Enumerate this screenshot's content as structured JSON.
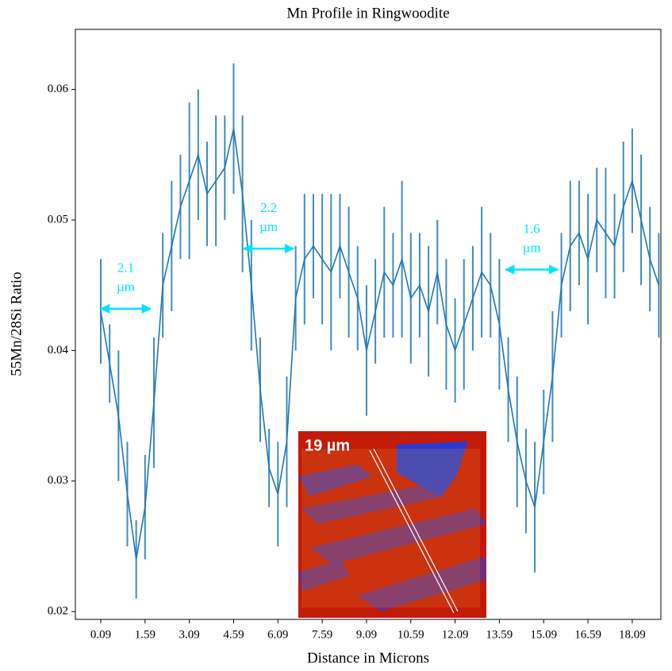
{
  "chart_data": {
    "type": "line",
    "title": "Mn Profile in Ringwoodite",
    "x_label": "Distance in Microns",
    "y_label": "55Mn/28Si Ratio",
    "color": "#1f77b4",
    "x": [
      0.09,
      0.39,
      0.69,
      0.99,
      1.29,
      1.59,
      1.89,
      2.19,
      2.49,
      2.79,
      3.09,
      3.39,
      3.69,
      3.99,
      4.29,
      4.59,
      4.89,
      5.19,
      5.49,
      5.79,
      6.09,
      6.39,
      6.69,
      6.99,
      7.29,
      7.59,
      7.89,
      8.19,
      8.49,
      8.79,
      9.09,
      9.39,
      9.69,
      9.99,
      10.29,
      10.59,
      10.89,
      11.19,
      11.49,
      11.79,
      12.09,
      12.39,
      12.69,
      12.99,
      13.29,
      13.59,
      13.89,
      14.19,
      14.49,
      14.79,
      15.09,
      15.39,
      15.69,
      15.99,
      16.29,
      16.59,
      16.89,
      17.19,
      17.49,
      17.79,
      18.09,
      18.39,
      18.69,
      18.99
    ],
    "values": [
      0.043,
      0.039,
      0.035,
      0.029,
      0.024,
      0.028,
      0.036,
      0.045,
      0.048,
      0.051,
      0.053,
      0.055,
      0.052,
      0.053,
      0.054,
      0.057,
      0.052,
      0.045,
      0.037,
      0.031,
      0.029,
      0.033,
      0.044,
      0.047,
      0.048,
      0.047,
      0.046,
      0.048,
      0.046,
      0.044,
      0.04,
      0.043,
      0.046,
      0.045,
      0.047,
      0.044,
      0.045,
      0.043,
      0.046,
      0.042,
      0.04,
      0.042,
      0.044,
      0.046,
      0.045,
      0.042,
      0.037,
      0.033,
      0.03,
      0.028,
      0.033,
      0.038,
      0.045,
      0.048,
      0.049,
      0.047,
      0.05,
      0.049,
      0.048,
      0.051,
      0.053,
      0.05,
      0.047,
      0.045
    ],
    "errors": [
      0.004,
      0.003,
      0.005,
      0.004,
      0.003,
      0.004,
      0.005,
      0.004,
      0.005,
      0.004,
      0.006,
      0.005,
      0.004,
      0.005,
      0.004,
      0.005,
      0.006,
      0.005,
      0.004,
      0.003,
      0.004,
      0.005,
      0.004,
      0.005,
      0.004,
      0.005,
      0.006,
      0.004,
      0.005,
      0.004,
      0.005,
      0.004,
      0.005,
      0.004,
      0.006,
      0.005,
      0.004,
      0.005,
      0.004,
      0.005,
      0.004,
      0.005,
      0.004,
      0.005,
      0.004,
      0.005,
      0.004,
      0.005,
      0.004,
      0.005,
      0.004,
      0.005,
      0.004,
      0.005,
      0.004,
      0.005,
      0.004,
      0.005,
      0.004,
      0.005,
      0.004,
      0.005,
      0.004,
      0.004
    ],
    "xlim": [
      -0.77,
      19.06
    ],
    "ylim": [
      0.0194,
      0.0646
    ],
    "xticks": [
      0.09,
      1.59,
      3.09,
      4.59,
      6.09,
      7.59,
      9.09,
      10.59,
      12.09,
      13.59,
      15.09,
      16.59,
      18.09
    ],
    "yticks": [
      0.02,
      0.03,
      0.04,
      0.05,
      0.06
    ],
    "annotations": [
      {
        "lines": [
          "2.1",
          "µm"
        ],
        "x_start": 0.09,
        "x_end": 1.78,
        "y": 0.0432
      },
      {
        "lines": [
          "2.2",
          "µm"
        ],
        "x_start": 4.93,
        "x_end": 6.62,
        "y": 0.0478
      },
      {
        "lines": [
          "1.6",
          "µm"
        ],
        "x_start": 13.8,
        "x_end": 15.57,
        "y": 0.0462
      }
    ],
    "inset_label": "19 µm"
  }
}
